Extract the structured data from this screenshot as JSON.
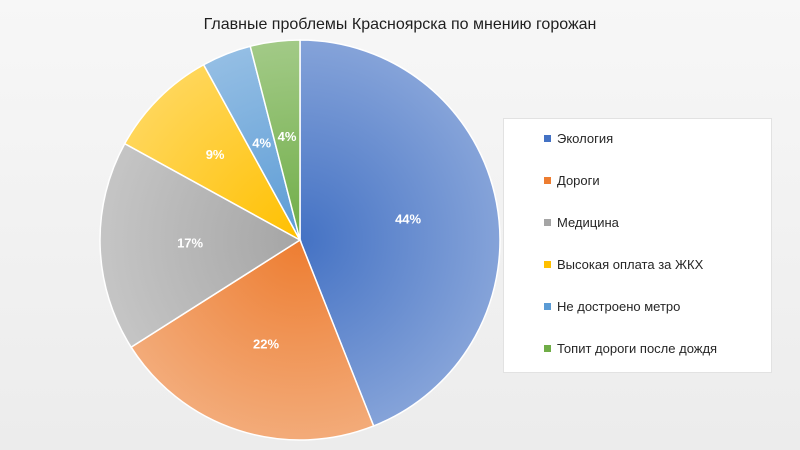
{
  "chart_data": {
    "type": "pie",
    "title": "Главные проблемы Красноярска по мнению горожан",
    "categories": [
      "Экология",
      "Дороги",
      "Медицина",
      "Высокая оплата за ЖКХ",
      "Не достроено метро",
      "Топит дороги после дождя"
    ],
    "values": [
      44,
      22,
      17,
      9,
      4,
      4
    ],
    "labels": [
      "44%",
      "22%",
      "17%",
      "9%",
      "4%",
      "4%"
    ],
    "colors": [
      "#4472c4",
      "#ed7d31",
      "#a5a5a5",
      "#ffc000",
      "#5b9bd5",
      "#70ad47"
    ],
    "legend_position": "right"
  }
}
